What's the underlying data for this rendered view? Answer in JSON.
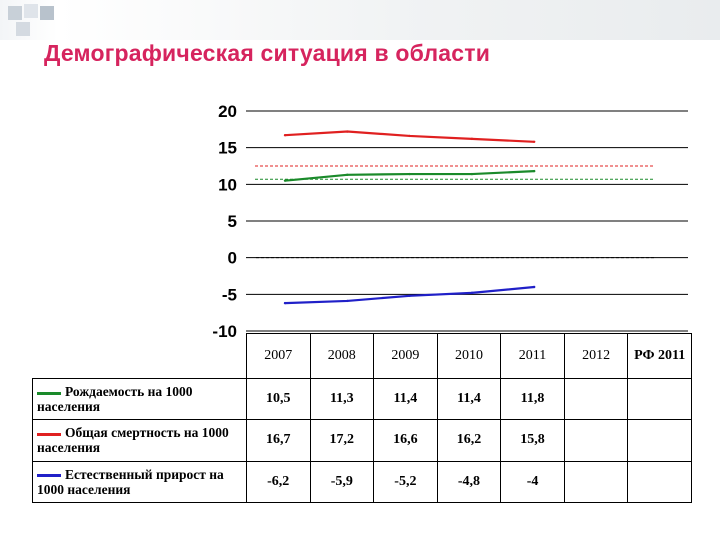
{
  "title": "Демографическая ситуация в области",
  "chart_data": {
    "type": "line",
    "x": [
      "2007",
      "2008",
      "2009",
      "2010",
      "2011"
    ],
    "columns": [
      "2007",
      "2008",
      "2009",
      "2010",
      "2011",
      "2012",
      "РФ 2011"
    ],
    "ylim": [
      -10,
      20
    ],
    "yticks": [
      "20",
      "15",
      "10",
      "5",
      "0",
      "-5",
      "-10"
    ],
    "series": [
      {
        "name": "Рождаемость на 1000 населения",
        "color": "#1a8a2a",
        "values": [
          10.5,
          11.3,
          11.4,
          11.4,
          11.8
        ],
        "labels": [
          "10,5",
          "11,3",
          "11,4",
          "11,4",
          "11,8"
        ],
        "reference": 10.7
      },
      {
        "name": "Общая смертность на 1000 населения",
        "color": "#e02020",
        "values": [
          16.7,
          17.2,
          16.6,
          16.2,
          15.8
        ],
        "labels": [
          "16,7",
          "17,2",
          "16,6",
          "16,2",
          "15,8"
        ],
        "reference": 12.5
      },
      {
        "name": "Естественный прирост на 1000 населения",
        "color": "#2020c8",
        "values": [
          -6.2,
          -5.9,
          -5.2,
          -4.8,
          -4
        ],
        "labels": [
          "-6,2",
          "-5,9",
          "-5,2",
          "-4,8",
          "-4"
        ],
        "reference": 0
      }
    ]
  }
}
